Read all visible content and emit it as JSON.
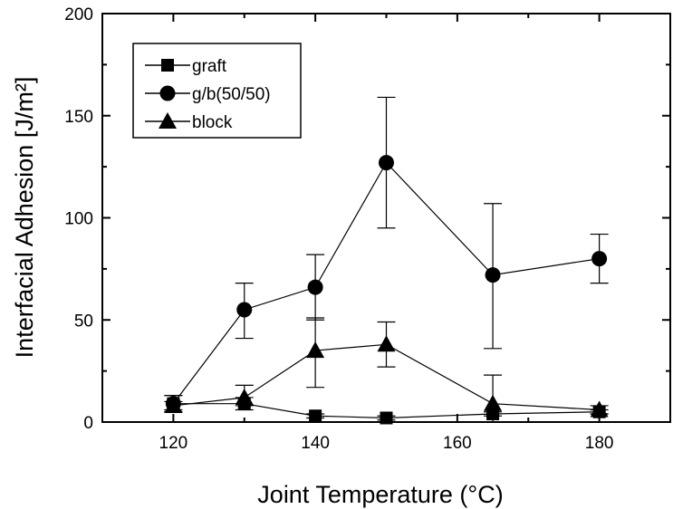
{
  "chart_data": {
    "type": "line",
    "title": "",
    "xlabel": "Joint Temperature (°C)",
    "ylabel": "Interfacial Adhesion [J/m²]",
    "xlim": [
      110,
      190
    ],
    "ylim": [
      0,
      200
    ],
    "x_ticks": [
      120,
      140,
      160,
      180
    ],
    "y_ticks": [
      0,
      50,
      100,
      150,
      200
    ],
    "grid": false,
    "legend_position": "top-left",
    "series": [
      {
        "name": "graft",
        "marker": "square",
        "x": [
          120,
          130,
          140,
          150,
          165,
          180
        ],
        "y": [
          9,
          9,
          3,
          2,
          4,
          5
        ],
        "err_low": [
          4,
          3,
          1,
          1,
          1,
          1
        ],
        "err_high": [
          4,
          3,
          1,
          1,
          1,
          1
        ]
      },
      {
        "name": "g/b(50/50)",
        "marker": "circle",
        "x": [
          120,
          130,
          140,
          150,
          165,
          180
        ],
        "y": [
          9,
          55,
          66,
          127,
          72,
          80
        ],
        "err_low": [
          4,
          14,
          16,
          32,
          36,
          12
        ],
        "err_high": [
          4,
          13,
          16,
          32,
          35,
          12
        ]
      },
      {
        "name": "block",
        "marker": "triangle",
        "x": [
          120,
          130,
          140,
          150,
          165,
          180
        ],
        "y": [
          8,
          12,
          35,
          38,
          9,
          6
        ],
        "err_low": [
          2,
          4,
          18,
          11,
          9,
          2
        ],
        "err_high": [
          2,
          6,
          16,
          11,
          14,
          2
        ]
      }
    ]
  }
}
